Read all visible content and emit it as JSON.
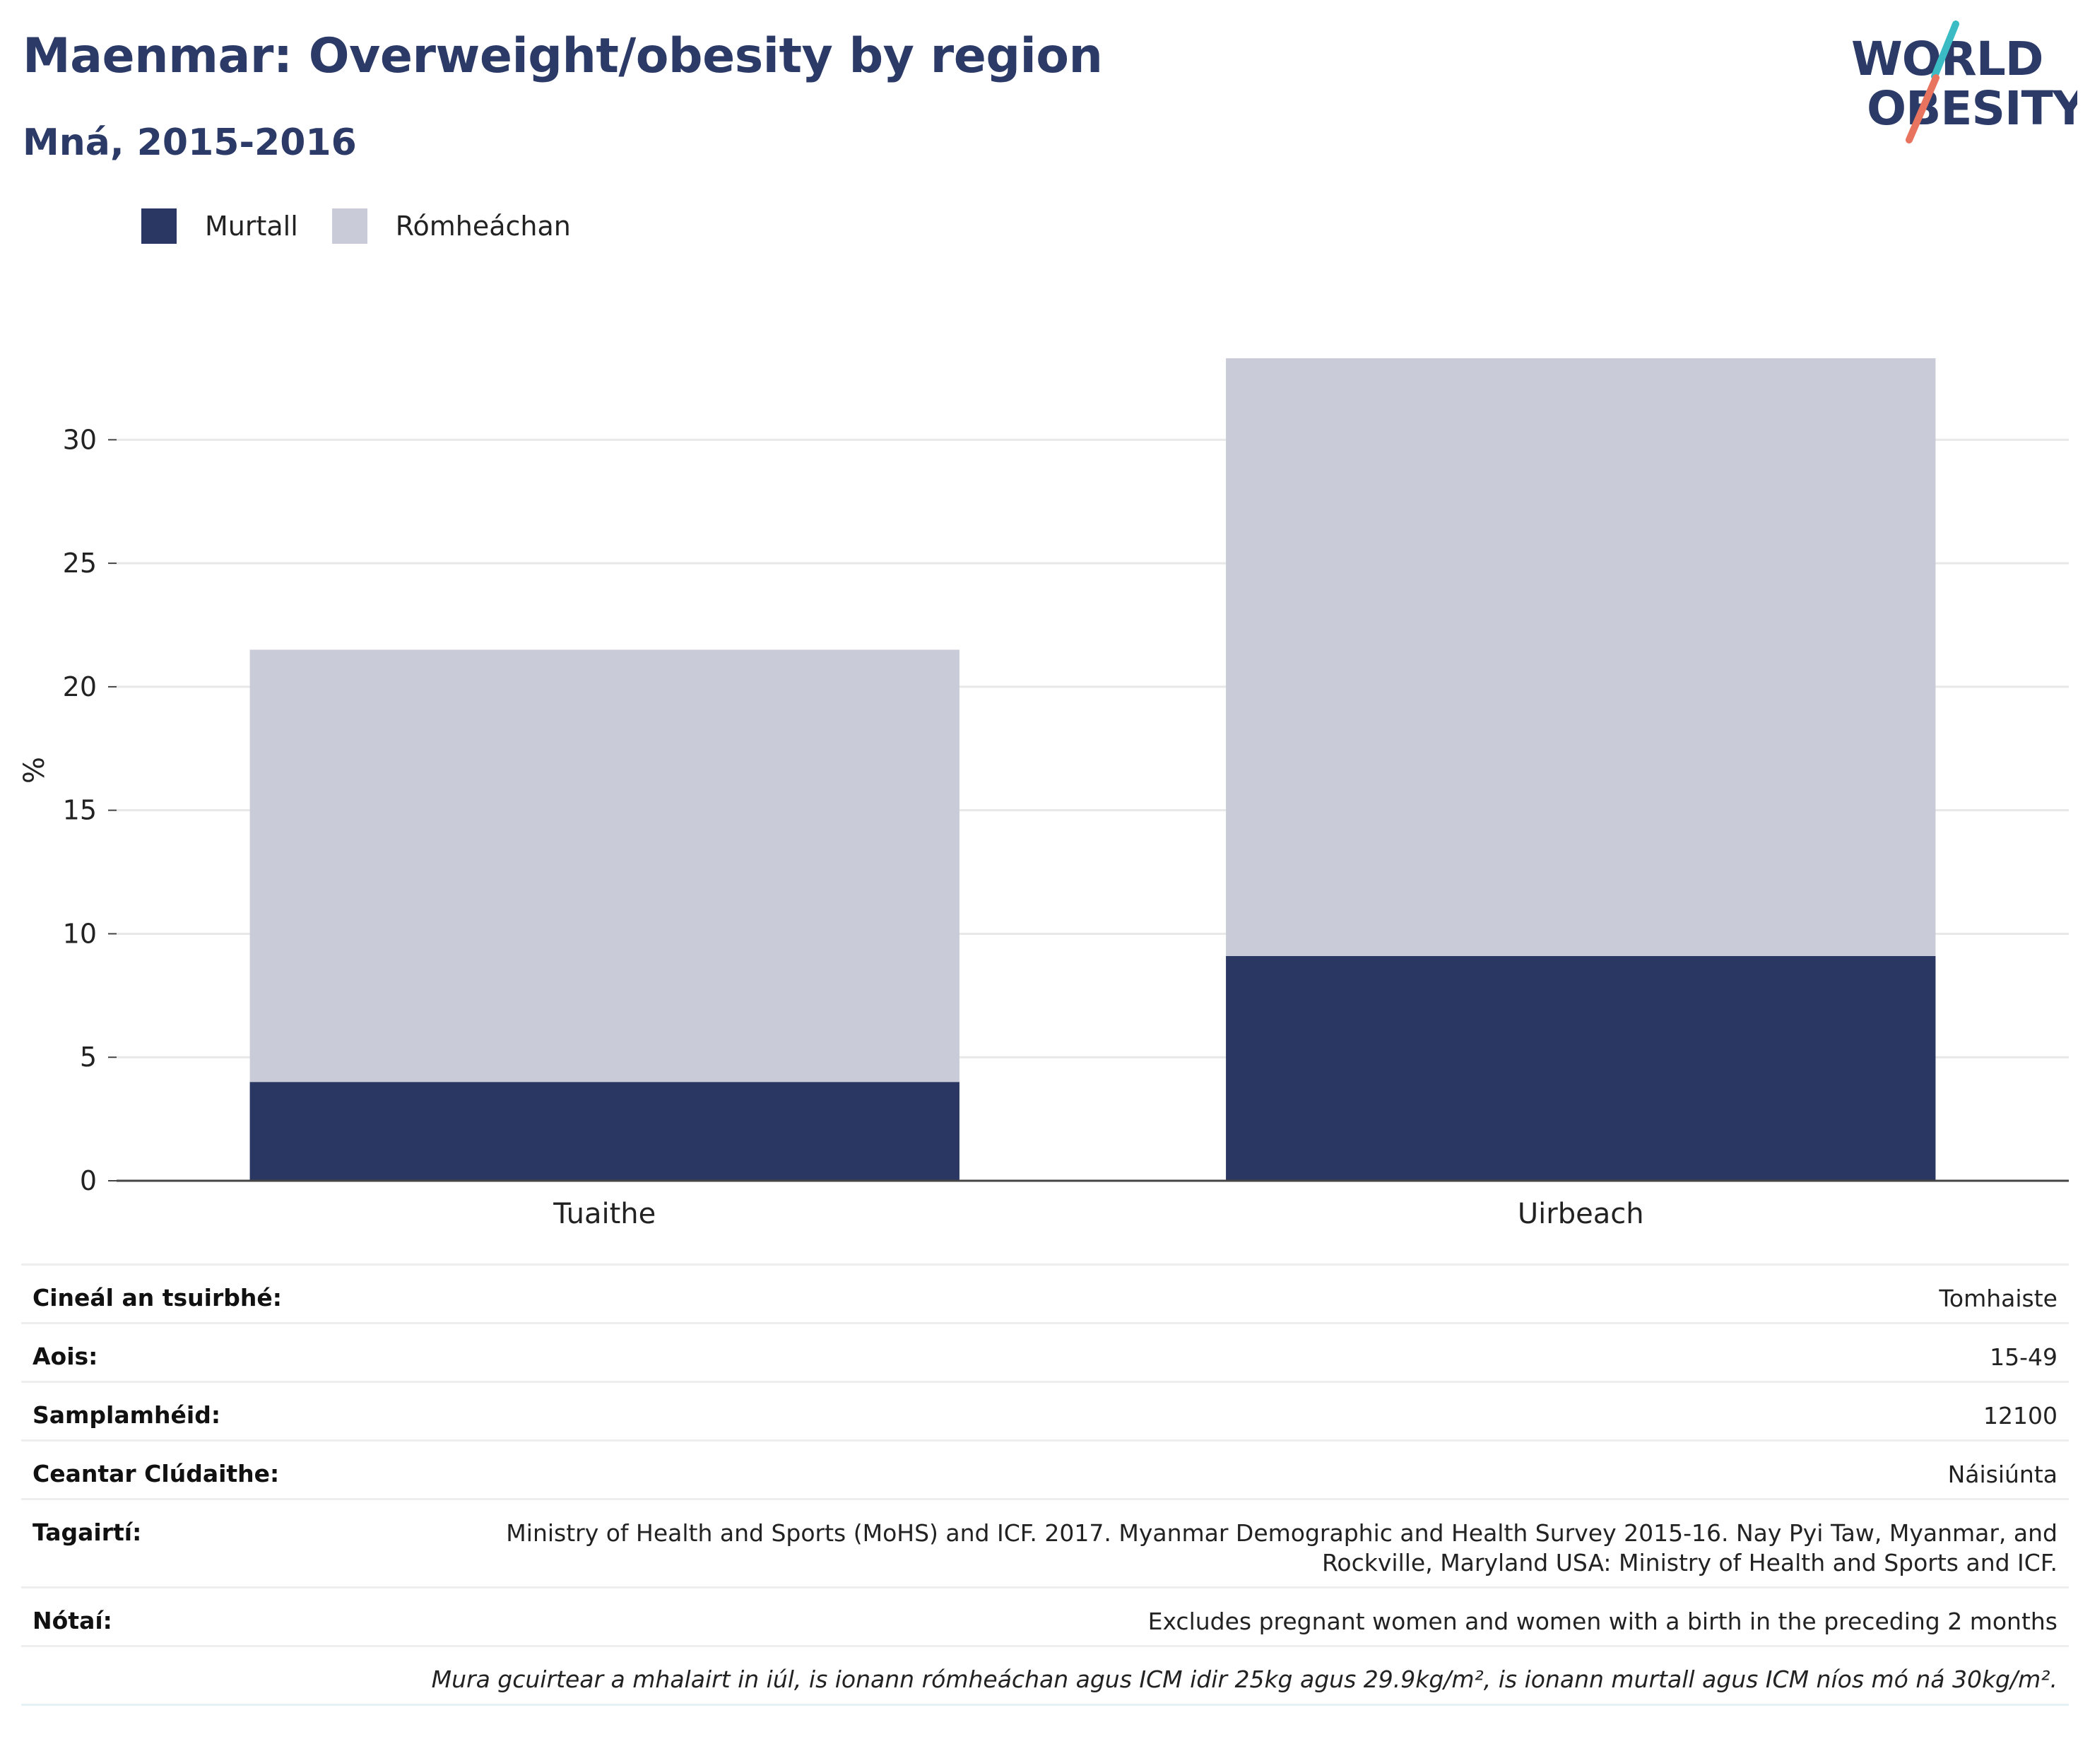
{
  "header": {
    "title": "Maenmar: Overweight/obesity by region",
    "subtitle": "Mná, 2015-2016"
  },
  "logo": {
    "line1": "WORLD",
    "line2": "OBESITY",
    "accent1": "#3bbcc4",
    "accent2": "#e8735e",
    "text_color": "#2b3a66"
  },
  "legend": [
    {
      "label": "Murtall",
      "color": "#2b3763"
    },
    {
      "label": "Rómheáchan",
      "color": "#c9ccd8"
    }
  ],
  "chart_data": {
    "type": "bar",
    "stacked": true,
    "categories": [
      "Tuaithe",
      "Uirbeach"
    ],
    "series": [
      {
        "name": "Murtall",
        "values": [
          4.0,
          9.1
        ],
        "color": "#2b3763"
      },
      {
        "name": "Rómheáchan",
        "values": [
          17.5,
          24.2
        ],
        "color": "#c9ccd8"
      }
    ],
    "ylabel": "%",
    "ylim": [
      0,
      33.5
    ],
    "yticks": [
      0,
      5,
      10,
      15,
      20,
      25,
      30
    ],
    "grid": true,
    "legend_position": "top-left"
  },
  "info": {
    "rows": [
      {
        "key": "Cineál an tsuirbhé:",
        "value": "Tomhaiste"
      },
      {
        "key": "Aois:",
        "value": "15-49"
      },
      {
        "key": "Samplamhéid:",
        "value": "12100"
      },
      {
        "key": "Ceantar Clúdaithe:",
        "value": "Náisiúnta"
      },
      {
        "key": "Tagairtí:",
        "value": "Ministry of Health and Sports (MoHS) and ICF. 2017. Myanmar Demographic and Health Survey 2015-16. Nay Pyi Taw, Myanmar, and Rockville, Maryland USA: Ministry of Health and Sports and ICF."
      },
      {
        "key": "Nótaí:",
        "value": "Excludes pregnant women and women with a birth in the preceding 2 months"
      }
    ],
    "footnote": "Mura gcuirtear a mhalairt in iúl, is ionann rómheáchan agus ICM idir 25kg agus 29.9kg/m², is ionann murtall agus ICM níos mó ná 30kg/m²."
  }
}
